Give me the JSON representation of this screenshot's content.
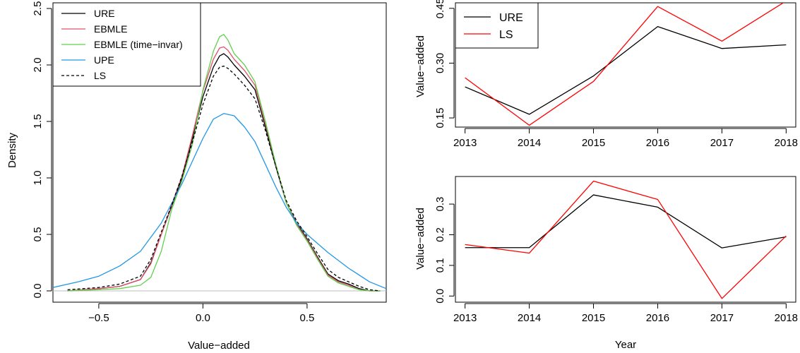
{
  "chart_data": [
    {
      "id": "density",
      "type": "line",
      "xlabel": "Value−added",
      "ylabel": "Density",
      "xlim": [
        -0.72,
        0.88
      ],
      "ylim": [
        -0.1,
        2.55
      ],
      "xticks": [
        -0.5,
        0.0,
        0.5
      ],
      "xtick_labels": [
        "−0.5",
        "0.0",
        "0.5"
      ],
      "yticks": [
        0.0,
        0.5,
        1.0,
        1.5,
        2.0,
        2.5
      ],
      "ytick_labels": [
        "0.0",
        "0.5",
        "1.0",
        "1.5",
        "2.0",
        "2.5"
      ],
      "baseline": {
        "y": 0,
        "color": "#bebebe"
      },
      "legend_position": "top-left",
      "series": [
        {
          "name": "URE",
          "color": "#000000",
          "dash": "",
          "x": [
            -0.65,
            -0.5,
            -0.4,
            -0.3,
            -0.25,
            -0.2,
            -0.15,
            -0.1,
            -0.05,
            0.0,
            0.05,
            0.08,
            0.1,
            0.12,
            0.15,
            0.2,
            0.25,
            0.3,
            0.35,
            0.4,
            0.45,
            0.5,
            0.55,
            0.6,
            0.65,
            0.7,
            0.75,
            0.8,
            0.85
          ],
          "y": [
            0.0,
            0.02,
            0.04,
            0.1,
            0.25,
            0.5,
            0.75,
            1.0,
            1.35,
            1.72,
            1.98,
            2.08,
            2.1,
            2.07,
            2.0,
            1.9,
            1.78,
            1.45,
            1.1,
            0.78,
            0.6,
            0.46,
            0.3,
            0.15,
            0.09,
            0.06,
            0.02,
            0.0,
            0.0
          ]
        },
        {
          "name": "EBMLE",
          "color": "#df536b",
          "dash": "",
          "x": [
            -0.65,
            -0.5,
            -0.4,
            -0.3,
            -0.25,
            -0.2,
            -0.15,
            -0.1,
            -0.05,
            0.0,
            0.05,
            0.08,
            0.1,
            0.12,
            0.15,
            0.2,
            0.25,
            0.3,
            0.35,
            0.4,
            0.45,
            0.5,
            0.55,
            0.6,
            0.65,
            0.7,
            0.75,
            0.8,
            0.85
          ],
          "y": [
            0.0,
            0.02,
            0.04,
            0.1,
            0.24,
            0.5,
            0.76,
            1.02,
            1.38,
            1.77,
            2.05,
            2.15,
            2.16,
            2.13,
            2.05,
            1.95,
            1.82,
            1.48,
            1.12,
            0.78,
            0.59,
            0.45,
            0.29,
            0.14,
            0.08,
            0.05,
            0.01,
            0.0,
            0.0
          ]
        },
        {
          "name": "EBMLE (time−invar)",
          "color": "#61d04f",
          "dash": "",
          "x": [
            -0.65,
            -0.5,
            -0.4,
            -0.3,
            -0.25,
            -0.2,
            -0.15,
            -0.1,
            -0.05,
            0.0,
            0.05,
            0.08,
            0.1,
            0.12,
            0.15,
            0.2,
            0.25,
            0.3,
            0.35,
            0.4,
            0.45,
            0.5,
            0.55,
            0.6,
            0.65,
            0.7,
            0.75,
            0.8,
            0.85
          ],
          "y": [
            0.0,
            0.01,
            0.02,
            0.05,
            0.12,
            0.35,
            0.72,
            0.98,
            1.3,
            1.78,
            2.12,
            2.25,
            2.27,
            2.22,
            2.1,
            2.0,
            1.85,
            1.5,
            1.12,
            0.78,
            0.58,
            0.44,
            0.28,
            0.13,
            0.07,
            0.04,
            0.01,
            0.0,
            0.0
          ]
        },
        {
          "name": "UPE",
          "color": "#2297e6",
          "dash": "",
          "x": [
            -0.72,
            -0.6,
            -0.5,
            -0.4,
            -0.3,
            -0.2,
            -0.1,
            0.0,
            0.05,
            0.1,
            0.15,
            0.2,
            0.25,
            0.3,
            0.35,
            0.4,
            0.45,
            0.5,
            0.6,
            0.7,
            0.8,
            0.88
          ],
          "y": [
            0.03,
            0.08,
            0.13,
            0.22,
            0.35,
            0.6,
            0.95,
            1.35,
            1.52,
            1.57,
            1.55,
            1.45,
            1.32,
            1.12,
            0.92,
            0.74,
            0.6,
            0.5,
            0.34,
            0.2,
            0.08,
            0.02
          ]
        },
        {
          "name": "LS",
          "color": "#000000",
          "dash": "4,3",
          "x": [
            -0.65,
            -0.5,
            -0.4,
            -0.3,
            -0.25,
            -0.2,
            -0.15,
            -0.1,
            -0.05,
            0.0,
            0.05,
            0.08,
            0.1,
            0.12,
            0.15,
            0.2,
            0.25,
            0.3,
            0.35,
            0.4,
            0.45,
            0.5,
            0.55,
            0.6,
            0.65,
            0.7,
            0.75,
            0.8,
            0.85
          ],
          "y": [
            0.01,
            0.03,
            0.06,
            0.13,
            0.28,
            0.52,
            0.76,
            1.02,
            1.32,
            1.65,
            1.9,
            1.98,
            1.99,
            1.97,
            1.92,
            1.82,
            1.7,
            1.42,
            1.1,
            0.8,
            0.62,
            0.48,
            0.33,
            0.19,
            0.12,
            0.08,
            0.04,
            0.01,
            0.0
          ]
        }
      ]
    },
    {
      "id": "top-right",
      "type": "line",
      "xlabel": "",
      "ylabel": "Value−added",
      "xlim": [
        2012.85,
        2018.15
      ],
      "ylim": [
        0.125,
        0.465
      ],
      "xticks": [
        2013,
        2014,
        2015,
        2016,
        2017,
        2018
      ],
      "xtick_labels": [
        "2013",
        "2014",
        "2015",
        "2016",
        "2017",
        "2018"
      ],
      "yticks": [
        0.15,
        0.3,
        0.45
      ],
      "ytick_labels": [
        "0.15",
        "0.30",
        "0.45"
      ],
      "legend_position": "top-left",
      "series": [
        {
          "name": "URE",
          "color": "#000000",
          "x": [
            2013,
            2014,
            2015,
            2016,
            2017,
            2018
          ],
          "y": [
            0.235,
            0.16,
            0.265,
            0.4,
            0.34,
            0.35
          ]
        },
        {
          "name": "LS",
          "color": "#ff0000",
          "x": [
            2013,
            2014,
            2015,
            2016,
            2017,
            2018
          ],
          "y": [
            0.26,
            0.13,
            0.25,
            0.455,
            0.36,
            0.47
          ]
        }
      ]
    },
    {
      "id": "bottom-right",
      "type": "line",
      "xlabel": "Year",
      "ylabel": "Value−added",
      "xlim": [
        2012.85,
        2018.15
      ],
      "ylim": [
        -0.02,
        0.39
      ],
      "xticks": [
        2013,
        2014,
        2015,
        2016,
        2017,
        2018
      ],
      "xtick_labels": [
        "2013",
        "2014",
        "2015",
        "2016",
        "2017",
        "2018"
      ],
      "yticks": [
        0.0,
        0.1,
        0.2,
        0.3
      ],
      "ytick_labels": [
        "0.0",
        "0.1",
        "0.2",
        "0.3"
      ],
      "series": [
        {
          "name": "URE",
          "color": "#000000",
          "x": [
            2013,
            2014,
            2015,
            2016,
            2017,
            2018
          ],
          "y": [
            0.158,
            0.158,
            0.33,
            0.29,
            0.157,
            0.193
          ]
        },
        {
          "name": "LS",
          "color": "#ff0000",
          "x": [
            2013,
            2014,
            2015,
            2016,
            2017,
            2018
          ],
          "y": [
            0.168,
            0.14,
            0.375,
            0.315,
            -0.008,
            0.196
          ]
        }
      ]
    }
  ]
}
